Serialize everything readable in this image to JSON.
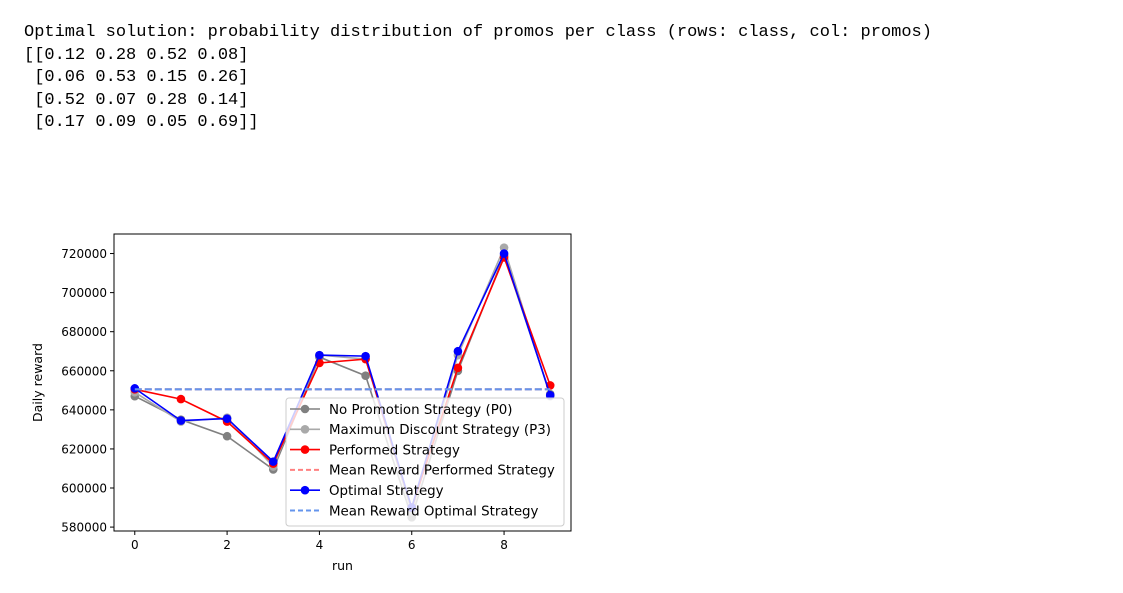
{
  "output": {
    "lines": [
      "Optimal solution: probability distribution of promos per class (rows: class, col: promos)",
      "[[0.12 0.28 0.52 0.08]",
      " [0.06 0.53 0.15 0.26]",
      " [0.52 0.07 0.28 0.14]",
      " [0.17 0.09 0.05 0.69]]"
    ]
  },
  "chart_data": {
    "type": "line",
    "title": "",
    "xlabel": "run",
    "ylabel": "Daily reward",
    "xlim": [
      -0.45,
      9.45
    ],
    "ylim": [
      578000,
      730000
    ],
    "xticks": [
      0,
      2,
      4,
      6,
      8
    ],
    "yticks": [
      580000,
      600000,
      620000,
      640000,
      660000,
      680000,
      700000,
      720000
    ],
    "grid": false,
    "legend_placement": "lower-right",
    "x": [
      0,
      1,
      2,
      3,
      4,
      5,
      6,
      7,
      8,
      9
    ],
    "series": [
      {
        "name": "No Promotion Strategy (P0)",
        "color": "#808080",
        "style": "line-marker",
        "values": [
          647000,
          635000,
          626500,
          609500,
          667000,
          657500,
          585000,
          660000,
          719000,
          648000
        ]
      },
      {
        "name": "Maximum Discount Strategy (P3)",
        "color": "#a9a9a9",
        "style": "line-marker",
        "values": [
          649000,
          634000,
          636000,
          611000,
          668000,
          666000,
          588000,
          668000,
          723000,
          647000
        ]
      },
      {
        "name": "Performed Strategy",
        "color": "#ff0000",
        "style": "line-marker",
        "values": [
          650500,
          645500,
          634000,
          612500,
          664000,
          666000,
          590000,
          661500,
          718000,
          652500
        ]
      },
      {
        "name": "Mean Reward Performed Strategy",
        "color": "#ff8080",
        "style": "dashed",
        "values": [
          650500,
          650500,
          650500,
          650500,
          650500,
          650500,
          650500,
          650500,
          650500,
          650500
        ]
      },
      {
        "name": "Optimal Strategy",
        "color": "#0000ff",
        "style": "line-marker",
        "values": [
          651000,
          634500,
          635500,
          613500,
          668000,
          667500,
          590000,
          670000,
          720000,
          647500
        ]
      },
      {
        "name": "Mean Reward Optimal Strategy",
        "color": "#6495ed",
        "style": "dashed",
        "values": [
          650500,
          650500,
          650500,
          650500,
          650500,
          650500,
          650500,
          650500,
          650500,
          650500
        ]
      }
    ]
  }
}
